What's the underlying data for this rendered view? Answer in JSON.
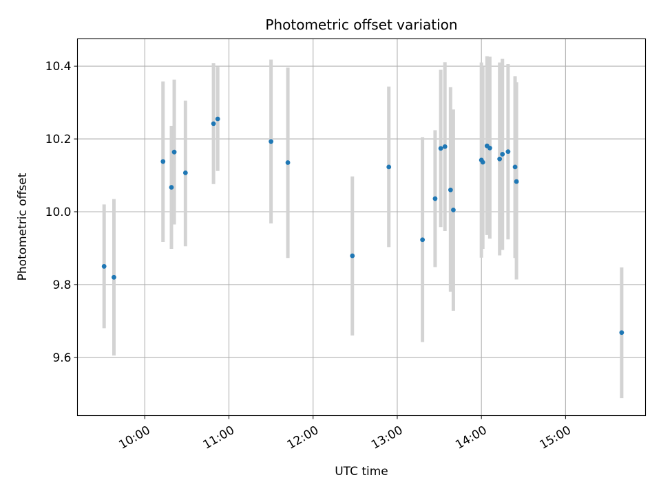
{
  "chart_data": {
    "type": "scatter",
    "title": "Photometric offset variation",
    "xlabel": "UTC time",
    "ylabel": "Photometric offset",
    "x_axis": {
      "type": "time",
      "range": [
        "09:12",
        "15:57"
      ],
      "ticks": [
        "10:00",
        "11:00",
        "12:00",
        "13:00",
        "14:00",
        "15:00"
      ]
    },
    "y_axis": {
      "range": [
        9.44,
        10.475
      ],
      "ticks": [
        9.6,
        9.8,
        10.0,
        10.2,
        10.4
      ],
      "tick_labels": [
        "9.6",
        "9.8",
        "10.0",
        "10.2",
        "10.4"
      ]
    },
    "grid": true,
    "colors": {
      "point": "#1f77b4",
      "errorbar": "#d3d3d3"
    },
    "points": [
      {
        "time": "09:31",
        "y": 9.85,
        "ylow": 9.68,
        "yhigh": 10.02
      },
      {
        "time": "09:38",
        "y": 9.82,
        "ylow": 9.605,
        "yhigh": 10.035
      },
      {
        "time": "10:13",
        "y": 10.138,
        "ylow": 9.917,
        "yhigh": 10.358
      },
      {
        "time": "10:19",
        "y": 10.067,
        "ylow": 9.898,
        "yhigh": 10.236
      },
      {
        "time": "10:21",
        "y": 10.164,
        "ylow": 9.965,
        "yhigh": 10.363
      },
      {
        "time": "10:29",
        "y": 10.107,
        "ylow": 9.905,
        "yhigh": 10.305
      },
      {
        "time": "10:49",
        "y": 10.242,
        "ylow": 10.076,
        "yhigh": 10.408
      },
      {
        "time": "10:52",
        "y": 10.255,
        "ylow": 10.112,
        "yhigh": 10.398
      },
      {
        "time": "11:30",
        "y": 10.193,
        "ylow": 9.968,
        "yhigh": 10.418
      },
      {
        "time": "11:42",
        "y": 10.135,
        "ylow": 9.873,
        "yhigh": 10.396
      },
      {
        "time": "12:28",
        "y": 9.879,
        "ylow": 9.66,
        "yhigh": 10.097
      },
      {
        "time": "12:54",
        "y": 10.123,
        "ylow": 9.903,
        "yhigh": 10.344
      },
      {
        "time": "13:18",
        "y": 9.923,
        "ylow": 9.642,
        "yhigh": 10.205
      },
      {
        "time": "13:27",
        "y": 10.036,
        "ylow": 9.848,
        "yhigh": 10.224
      },
      {
        "time": "13:31",
        "y": 10.174,
        "ylow": 9.958,
        "yhigh": 10.39
      },
      {
        "time": "13:34",
        "y": 10.179,
        "ylow": 9.947,
        "yhigh": 10.411
      },
      {
        "time": "13:38",
        "y": 10.06,
        "ylow": 9.78,
        "yhigh": 10.342
      },
      {
        "time": "13:40",
        "y": 10.005,
        "ylow": 9.728,
        "yhigh": 10.281
      },
      {
        "time": "14:00",
        "y": 10.142,
        "ylow": 9.874,
        "yhigh": 10.41
      },
      {
        "time": "14:01",
        "y": 10.136,
        "ylow": 9.898,
        "yhigh": 10.4
      },
      {
        "time": "14:04",
        "y": 10.181,
        "ylow": 9.936,
        "yhigh": 10.427
      },
      {
        "time": "14:06",
        "y": 10.175,
        "ylow": 9.926,
        "yhigh": 10.426
      },
      {
        "time": "14:13",
        "y": 10.145,
        "ylow": 9.88,
        "yhigh": 10.41
      },
      {
        "time": "14:15",
        "y": 10.158,
        "ylow": 9.895,
        "yhigh": 10.42
      },
      {
        "time": "14:19",
        "y": 10.165,
        "ylow": 9.924,
        "yhigh": 10.406
      },
      {
        "time": "14:24",
        "y": 10.123,
        "ylow": 9.873,
        "yhigh": 10.372
      },
      {
        "time": "14:25",
        "y": 10.083,
        "ylow": 9.814,
        "yhigh": 10.356
      },
      {
        "time": "15:40",
        "y": 9.668,
        "ylow": 9.488,
        "yhigh": 9.847
      }
    ]
  }
}
